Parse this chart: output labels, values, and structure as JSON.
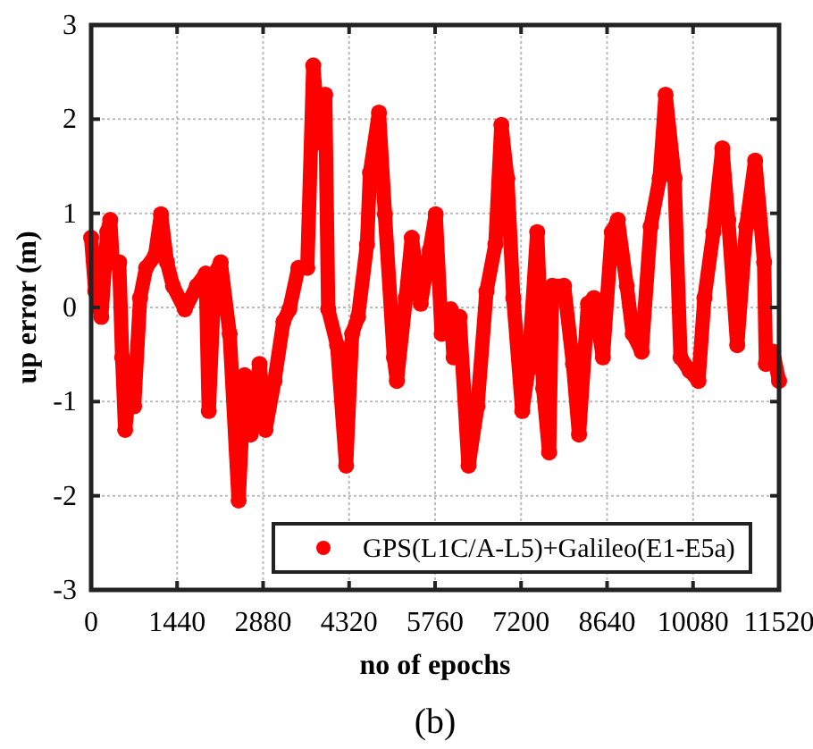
{
  "chart_data": {
    "type": "line",
    "line_style": "solid",
    "xlabel": "no of epochs",
    "ylabel": "up error (m)",
    "annotations": [
      "(b)"
    ],
    "xlim": [
      0,
      11520
    ],
    "xticks": [
      0,
      1440,
      2880,
      4320,
      5760,
      7200,
      8640,
      10080,
      11520
    ],
    "ylim": [
      -3,
      3
    ],
    "yticks": [
      -3,
      -2,
      -1,
      0,
      1,
      2,
      3
    ],
    "grid": true,
    "legend": "bottom right",
    "marker": "circle",
    "series": [
      {
        "name": "GPS(L1C/A-L5)+Galileo(E1-E5a)",
        "color": "#ff0000",
        "x": [
          0,
          70,
          170,
          270,
          320,
          360,
          470,
          520,
          570,
          670,
          720,
          820,
          920,
          1070,
          1170,
          1270,
          1370,
          1570,
          1770,
          1920,
          1970,
          2070,
          2170,
          2320,
          2470,
          2570,
          2670,
          2820,
          2920,
          3070,
          3220,
          3320,
          3470,
          3620,
          3720,
          3820,
          3920,
          3970,
          4120,
          4270,
          4370,
          4470,
          4620,
          4670,
          4820,
          4920,
          5070,
          5120,
          5270,
          5370,
          5520,
          5670,
          5770,
          5870,
          6020,
          6070,
          6170,
          6320,
          6470,
          6620,
          6770,
          6870,
          6970,
          7070,
          7220,
          7320,
          7470,
          7570,
          7670,
          7720,
          7920,
          8070,
          8170,
          8320,
          8420,
          8570,
          8720,
          8820,
          8970,
          9070,
          9220,
          9370,
          9520,
          9620,
          9770,
          9870,
          10020,
          10170,
          10270,
          10420,
          10570,
          10670,
          10820,
          10970,
          11120,
          11270,
          11300,
          11420,
          11520
        ],
        "values": [
          0.74,
          0.17,
          -0.1,
          0.8,
          0.93,
          0.48,
          0.48,
          -0.53,
          -1.3,
          -0.67,
          -1.05,
          0.1,
          0.42,
          0.55,
          0.99,
          0.48,
          0.23,
          -0.02,
          0.23,
          0.36,
          -1.1,
          0.36,
          0.48,
          -0.28,
          -2.05,
          -0.72,
          -1.35,
          -0.6,
          -1.3,
          -0.78,
          -0.15,
          -0.02,
          0.42,
          0.42,
          2.57,
          1.75,
          2.26,
          -0.02,
          -0.4,
          -1.68,
          -0.28,
          -0.1,
          0.67,
          1.43,
          2.07,
          0.99,
          -0.53,
          -0.78,
          0.1,
          0.74,
          0.04,
          0.61,
          0.99,
          -0.28,
          -0.02,
          -0.53,
          -0.1,
          -1.68,
          -1.05,
          0.17,
          0.67,
          1.94,
          1.37,
          0.1,
          -1.1,
          -0.67,
          0.8,
          -0.86,
          -1.54,
          0.23,
          0.23,
          -0.6,
          -1.35,
          0.04,
          0.1,
          -0.53,
          0.8,
          0.93,
          0.23,
          -0.28,
          -0.47,
          0.86,
          1.37,
          2.26,
          1.37,
          -0.53,
          -0.67,
          -0.78,
          0.1,
          0.8,
          1.69,
          0.93,
          -0.4,
          0.86,
          1.56,
          0.48,
          -0.6,
          -0.47,
          -0.78
        ]
      }
    ]
  }
}
